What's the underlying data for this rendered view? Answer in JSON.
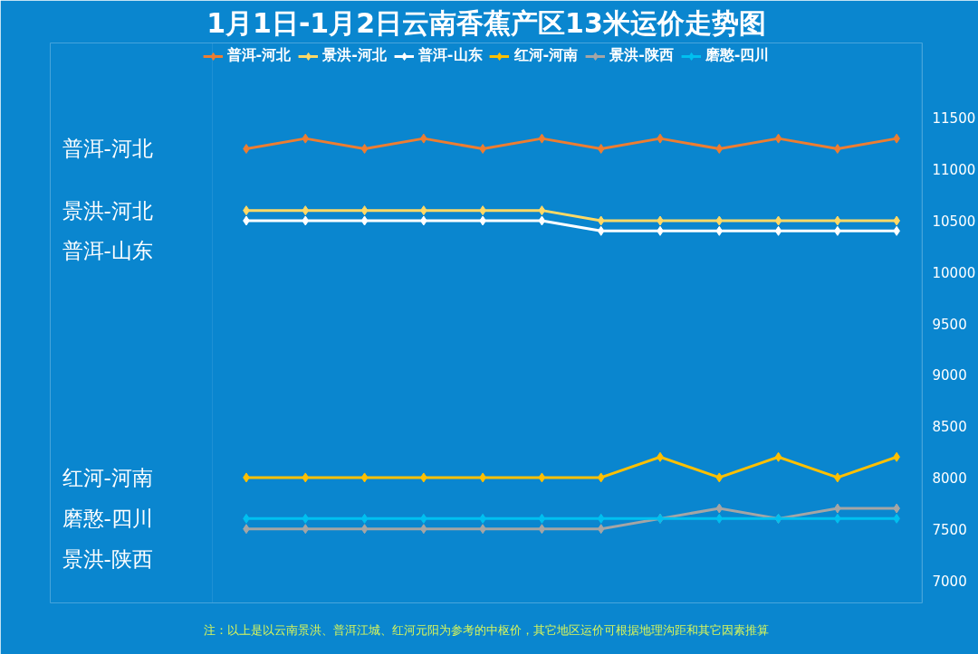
{
  "chart_data": {
    "type": "line",
    "title": "1月1日-1月2日云南香蕉产区13米运价走势图",
    "categories": [
      null,
      null,
      null,
      null,
      null,
      null,
      null,
      null,
      null,
      null,
      null,
      null
    ],
    "series": [
      {
        "name": "普洱-河北",
        "color": "#ed7d31",
        "values": [
          11200,
          11300,
          11200,
          11300,
          11200,
          11300,
          11200,
          11300,
          11200,
          11300,
          11200,
          11300
        ]
      },
      {
        "name": "景洪-河北",
        "color": "#ffd966",
        "values": [
          10600,
          10600,
          10600,
          10600,
          10600,
          10600,
          10500,
          10500,
          10500,
          10500,
          10500,
          10500
        ]
      },
      {
        "name": "普洱-山东",
        "color": "#ffffff",
        "values": [
          10500,
          10500,
          10500,
          10500,
          10500,
          10500,
          10400,
          10400,
          10400,
          10400,
          10400,
          10400
        ]
      },
      {
        "name": "红河-河南",
        "color": "#ffc000",
        "values": [
          8000,
          8000,
          8000,
          8000,
          8000,
          8000,
          8000,
          8200,
          8000,
          8200,
          8000,
          8200
        ]
      },
      {
        "name": "景洪-陕西",
        "color": "#a5a5a5",
        "values": [
          7500,
          7500,
          7500,
          7500,
          7500,
          7500,
          7500,
          7600,
          7700,
          7600,
          7700,
          7700
        ]
      },
      {
        "name": "磨憨-四川",
        "color": "#00c0f0",
        "values": [
          7600,
          7600,
          7600,
          7600,
          7600,
          7600,
          7600,
          7600,
          7600,
          7600,
          7600,
          7600
        ]
      }
    ],
    "ylim": [
      6780,
      12230
    ],
    "yticks": [
      7000,
      7500,
      8000,
      8500,
      9000,
      9500,
      10000,
      10500,
      11000,
      11500
    ],
    "legend": "top",
    "marker": "diamond",
    "line_style": "solid",
    "grid": false,
    "annotations": [
      "注：以上是以云南景洪、普洱江城、红河元阳为参考的中枢价，其它地区运价可根据地理沟距和其它因素推算"
    ]
  }
}
